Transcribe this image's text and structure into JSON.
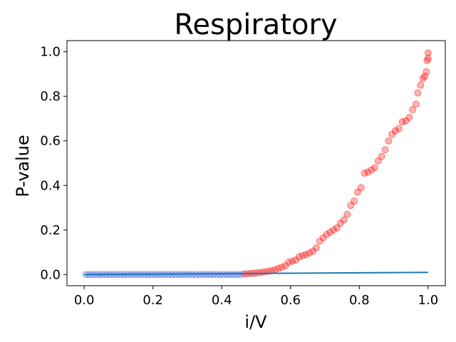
{
  "chart_data": {
    "type": "scatter",
    "title": "Respiratory",
    "xlabel": "i/V",
    "ylabel": "P-value",
    "xlim": [
      -0.05,
      1.05
    ],
    "ylim": [
      -0.05,
      1.05
    ],
    "xticks": [
      "0.0",
      "0.2",
      "0.4",
      "0.6",
      "0.8",
      "1.0"
    ],
    "yticks": [
      "0.0",
      "0.2",
      "0.4",
      "0.6",
      "0.8",
      "1.0"
    ],
    "grid": false,
    "threshold_line": {
      "x": [
        0,
        1.0
      ],
      "y": [
        0,
        0.01
      ],
      "color": "#1f77b4"
    },
    "series": [
      {
        "color": "#ff0000",
        "points": [
          [
            0.465,
            0.003
          ],
          [
            0.475,
            0.004
          ],
          [
            0.485,
            0.005
          ],
          [
            0.495,
            0.006
          ],
          [
            0.505,
            0.008
          ],
          [
            0.515,
            0.01
          ],
          [
            0.525,
            0.012
          ],
          [
            0.535,
            0.015
          ],
          [
            0.545,
            0.018
          ],
          [
            0.555,
            0.022
          ],
          [
            0.565,
            0.028
          ],
          [
            0.575,
            0.033
          ],
          [
            0.585,
            0.04
          ],
          [
            0.595,
            0.055
          ],
          [
            0.605,
            0.06
          ],
          [
            0.615,
            0.065
          ],
          [
            0.625,
            0.08
          ],
          [
            0.635,
            0.085
          ],
          [
            0.645,
            0.09
          ],
          [
            0.655,
            0.097
          ],
          [
            0.665,
            0.105
          ],
          [
            0.675,
            0.12
          ],
          [
            0.685,
            0.15
          ],
          [
            0.695,
            0.165
          ],
          [
            0.705,
            0.18
          ],
          [
            0.715,
            0.19
          ],
          [
            0.725,
            0.2
          ],
          [
            0.735,
            0.21
          ],
          [
            0.745,
            0.23
          ],
          [
            0.755,
            0.245
          ],
          [
            0.765,
            0.27
          ],
          [
            0.775,
            0.31
          ],
          [
            0.785,
            0.33
          ],
          [
            0.795,
            0.37
          ],
          [
            0.805,
            0.39
          ],
          [
            0.815,
            0.455
          ],
          [
            0.825,
            0.46
          ],
          [
            0.835,
            0.47
          ],
          [
            0.845,
            0.48
          ],
          [
            0.855,
            0.51
          ],
          [
            0.865,
            0.53
          ],
          [
            0.875,
            0.56
          ],
          [
            0.885,
            0.6
          ],
          [
            0.895,
            0.63
          ],
          [
            0.905,
            0.645
          ],
          [
            0.915,
            0.655
          ],
          [
            0.925,
            0.685
          ],
          [
            0.935,
            0.69
          ],
          [
            0.945,
            0.705
          ],
          [
            0.955,
            0.74
          ],
          [
            0.965,
            0.765
          ],
          [
            0.97,
            0.815
          ],
          [
            0.978,
            0.85
          ],
          [
            0.985,
            0.88
          ],
          [
            0.99,
            0.89
          ],
          [
            0.995,
            0.91
          ],
          [
            0.997,
            0.96
          ],
          [
            1.0,
            0.97
          ],
          [
            1.0,
            0.995
          ]
        ]
      },
      {
        "color": "#3b5de7",
        "points": [
          [
            0.005,
            0.0
          ],
          [
            0.015,
            0.0
          ],
          [
            0.025,
            0.0
          ],
          [
            0.035,
            0.0
          ],
          [
            0.045,
            0.0
          ],
          [
            0.055,
            0.0
          ],
          [
            0.065,
            0.0
          ],
          [
            0.075,
            0.0
          ],
          [
            0.085,
            0.0
          ],
          [
            0.095,
            0.0
          ],
          [
            0.105,
            0.0
          ],
          [
            0.115,
            0.0
          ],
          [
            0.125,
            0.0
          ],
          [
            0.135,
            0.0
          ],
          [
            0.145,
            0.0
          ],
          [
            0.155,
            0.0
          ],
          [
            0.165,
            0.0
          ],
          [
            0.175,
            0.0
          ],
          [
            0.185,
            0.0
          ],
          [
            0.195,
            0.0
          ],
          [
            0.205,
            0.0
          ],
          [
            0.215,
            0.0
          ],
          [
            0.225,
            0.0
          ],
          [
            0.235,
            0.0
          ],
          [
            0.245,
            0.0
          ],
          [
            0.255,
            0.0
          ],
          [
            0.265,
            0.0
          ],
          [
            0.275,
            0.0
          ],
          [
            0.285,
            0.0
          ],
          [
            0.295,
            0.0
          ],
          [
            0.305,
            0.0
          ],
          [
            0.315,
            0.0
          ],
          [
            0.325,
            0.0
          ],
          [
            0.335,
            0.0
          ],
          [
            0.345,
            0.0
          ],
          [
            0.355,
            0.0
          ],
          [
            0.365,
            0.0
          ],
          [
            0.375,
            0.0
          ],
          [
            0.385,
            0.0
          ],
          [
            0.395,
            0.0
          ],
          [
            0.405,
            0.0
          ],
          [
            0.415,
            0.0
          ],
          [
            0.425,
            0.0
          ],
          [
            0.435,
            0.0
          ],
          [
            0.445,
            0.0
          ],
          [
            0.455,
            0.0
          ]
        ]
      }
    ]
  }
}
